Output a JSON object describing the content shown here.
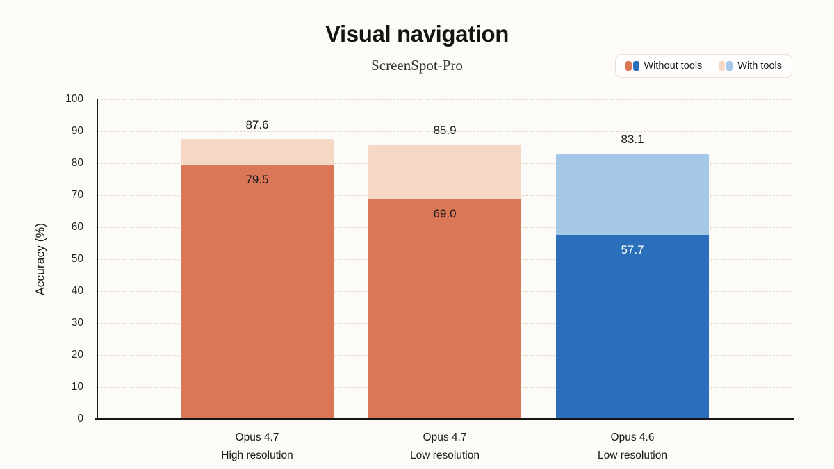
{
  "chart_data": {
    "type": "bar",
    "title": "Visual navigation",
    "subtitle": "ScreenSpot-Pro",
    "ylabel": "Accuracy (%)",
    "ylim": [
      0,
      100
    ],
    "yticks": [
      0,
      10,
      20,
      30,
      40,
      50,
      60,
      70,
      80,
      90,
      100
    ],
    "grid": "horizontal-dashed",
    "legend_position": "top-right",
    "categories": [
      [
        "Opus 4.7",
        "High resolution"
      ],
      [
        "Opus 4.7",
        "Low resolution"
      ],
      [
        "Opus 4.6",
        "Low resolution"
      ]
    ],
    "series": [
      {
        "name": "Without tools",
        "values": [
          79.5,
          69.0,
          57.7
        ],
        "colors": [
          "#d97757",
          "#d97757",
          "#2b6fba"
        ],
        "label_colors": [
          "#161616",
          "#161616",
          "#ffffff"
        ]
      },
      {
        "name": "With tools",
        "values": [
          87.6,
          85.9,
          83.1
        ],
        "colors": [
          "#f5d7c5",
          "#f5d7c5",
          "#a6c8e8"
        ],
        "label_colors": [
          "#161616",
          "#161616",
          "#161616"
        ]
      }
    ],
    "legend": [
      {
        "label": "Without tools",
        "swatch": [
          "#d97757",
          "#2b6fba"
        ]
      },
      {
        "label": "With tools",
        "swatch": [
          "#f5d7c5",
          "#a6c8e8"
        ]
      }
    ],
    "colors": {
      "background": "#fcfbf8",
      "axis": "#161614",
      "gridline": "#ddd7cc"
    }
  }
}
